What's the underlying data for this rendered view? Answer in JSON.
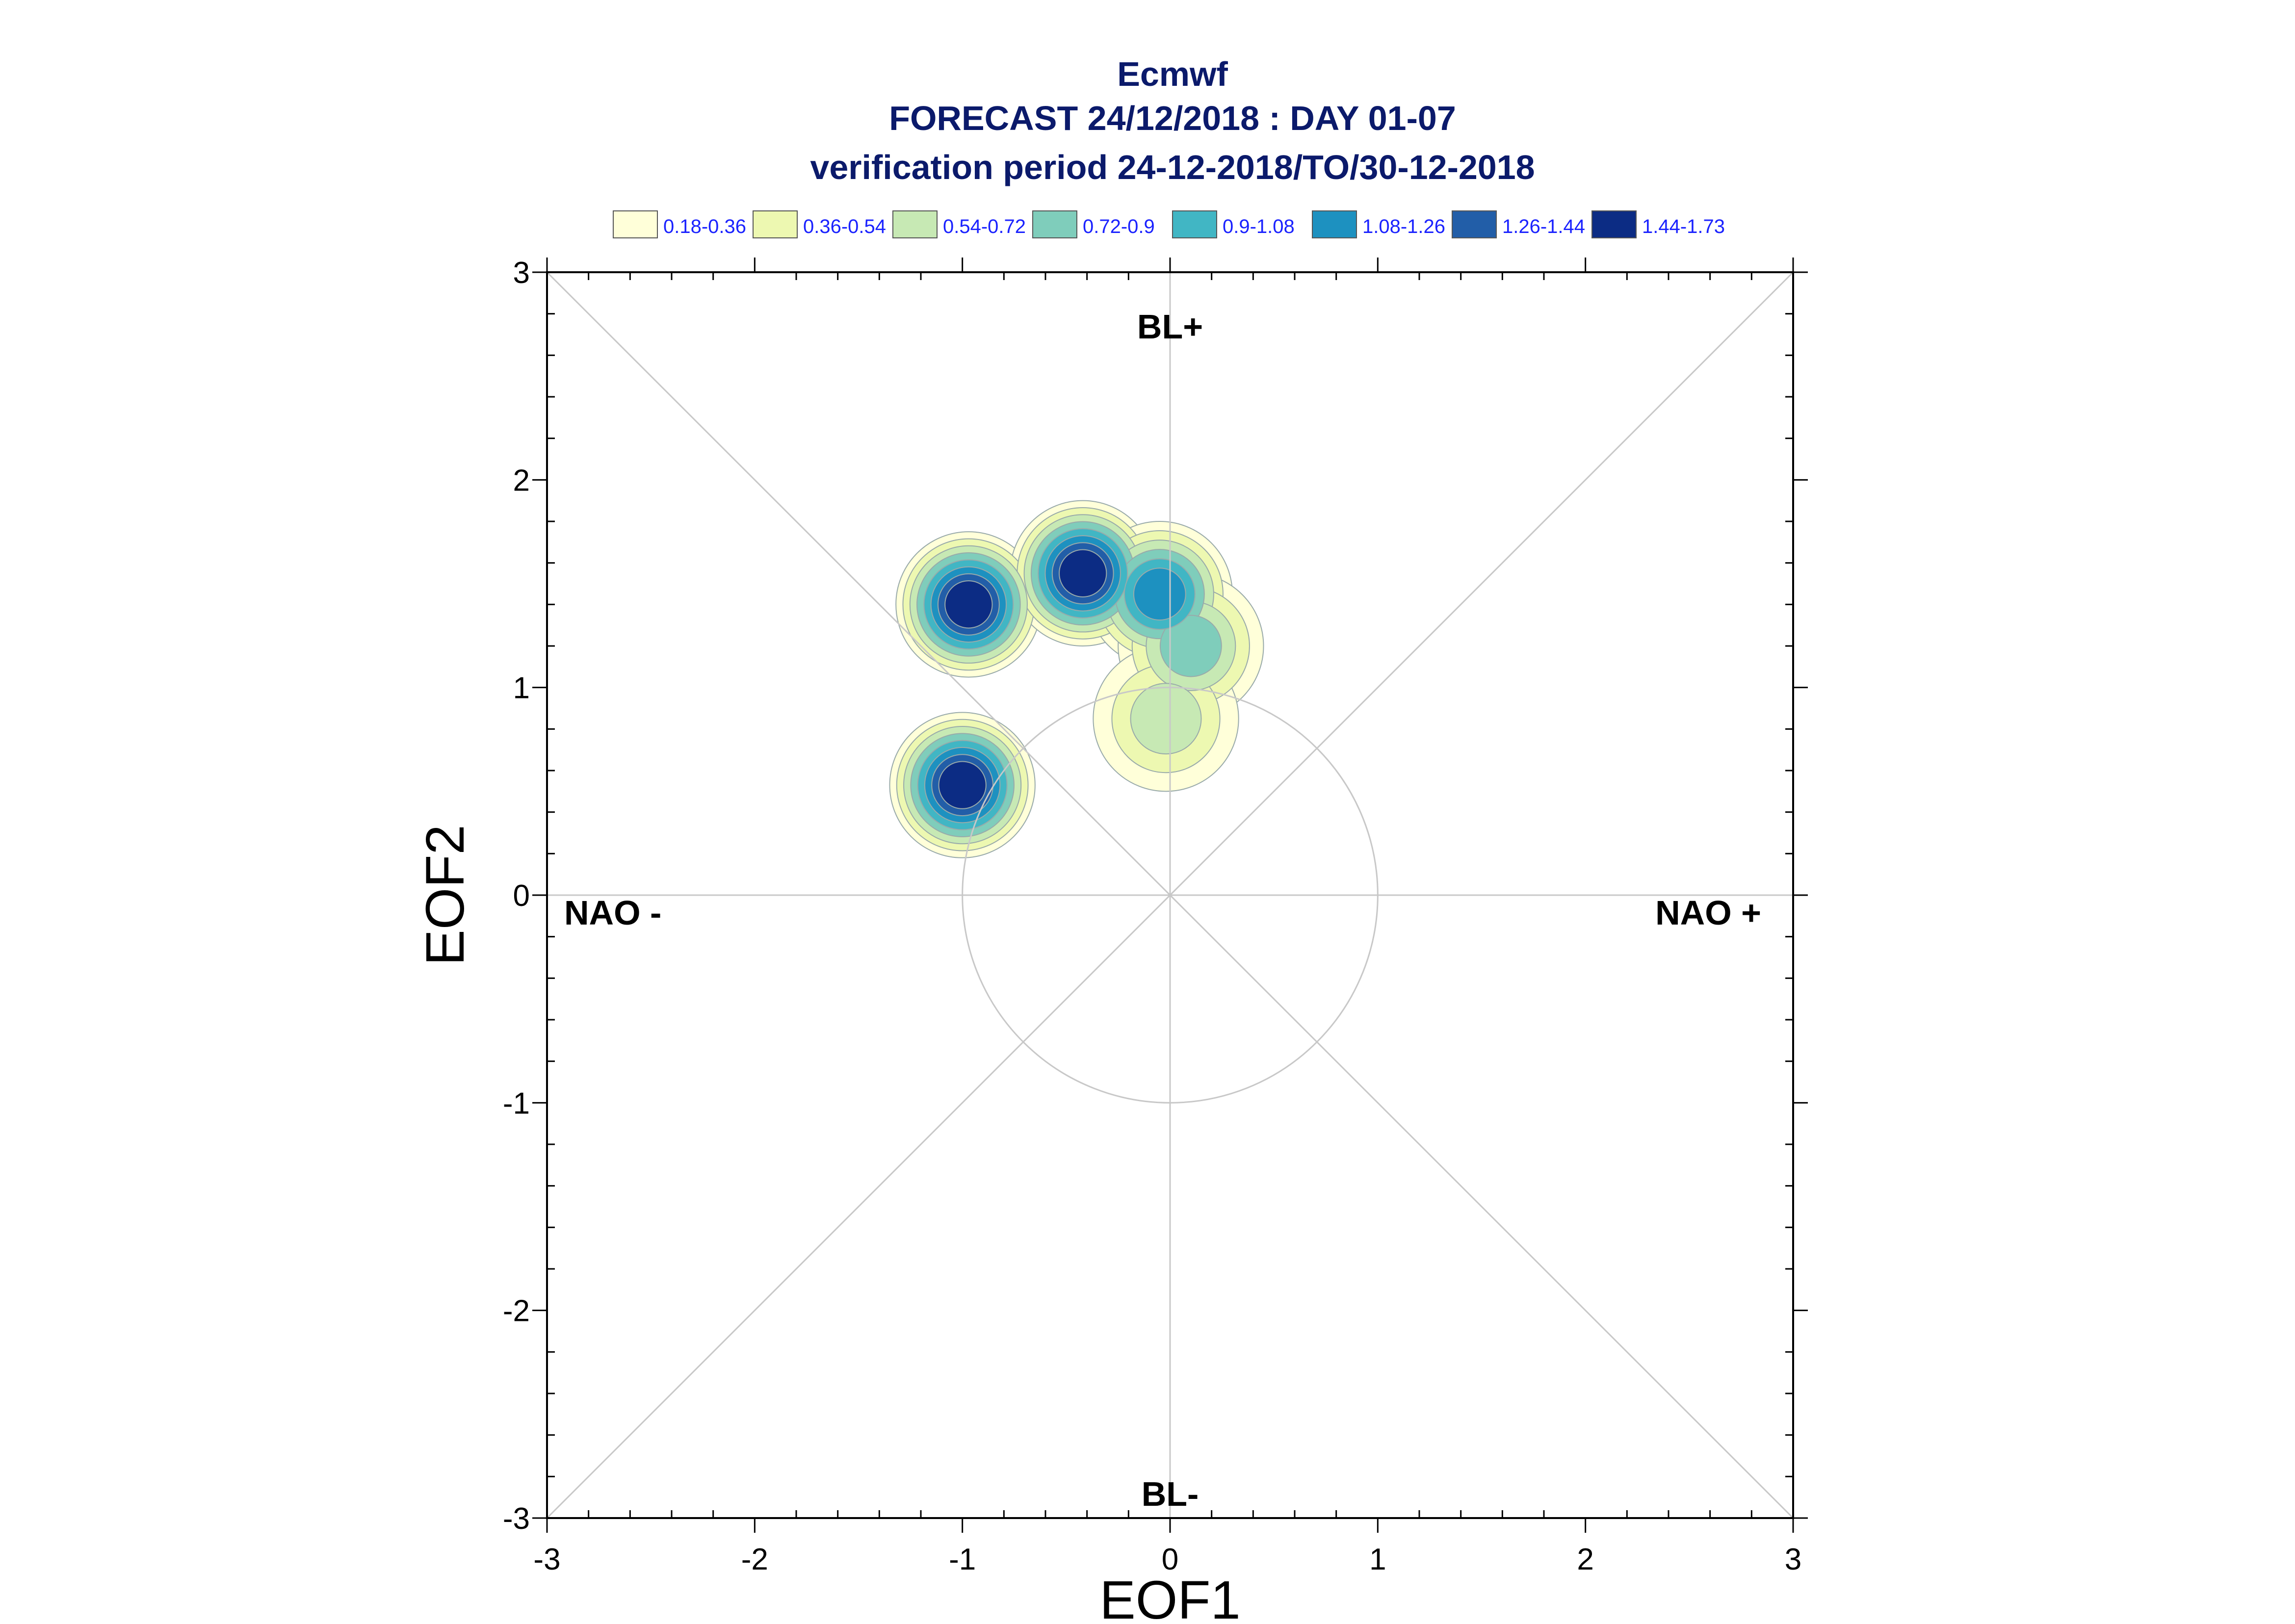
{
  "chart_data": {
    "type": "contour",
    "title": "Ecmwf",
    "subtitle_1": "FORECAST 24/12/2018 : DAY 01-07",
    "subtitle_2": "verification period 24-12-2018/TO/30-12-2018",
    "xlabel": "EOF1",
    "ylabel": "EOF2",
    "xlim": [
      -3,
      3
    ],
    "ylim": [
      -3,
      3
    ],
    "xticks": [
      "-3",
      "-2",
      "-1",
      "0",
      "1",
      "2",
      "3"
    ],
    "yticks": [
      "-3",
      "-2",
      "-1",
      "0",
      "1",
      "2",
      "3"
    ],
    "grid": false,
    "reference_circle_radius": 1,
    "legend_position": "top",
    "legend": [
      {
        "label": "0.18-0.36",
        "color": "#ffffd9"
      },
      {
        "label": "0.36-0.54",
        "color": "#edf8b1"
      },
      {
        "label": "0.54-0.72",
        "color": "#c7e9b4"
      },
      {
        "label": "0.72-0.9",
        "color": "#7fcdbb"
      },
      {
        "label": "0.9-1.08",
        "color": "#41b6c4"
      },
      {
        "label": "1.08-1.26",
        "color": "#1d91c0"
      },
      {
        "label": "1.26-1.44",
        "color": "#225ea8"
      },
      {
        "label": "1.44-1.73",
        "color": "#0c2c84"
      }
    ],
    "density_peaks": [
      {
        "x": -1.0,
        "y": 0.53,
        "peak": 1.6
      },
      {
        "x": -0.97,
        "y": 1.4,
        "peak": 1.6
      },
      {
        "x": -0.42,
        "y": 1.55,
        "peak": 1.6
      },
      {
        "x": -0.05,
        "y": 1.45,
        "peak": 1.1
      },
      {
        "x": 0.1,
        "y": 1.2,
        "peak": 0.8
      },
      {
        "x": -0.02,
        "y": 0.85,
        "peak": 0.6
      }
    ],
    "regime_labels": {
      "top": "BL+",
      "bottom": "BL-",
      "left": "NAO -",
      "right": "NAO +"
    }
  }
}
